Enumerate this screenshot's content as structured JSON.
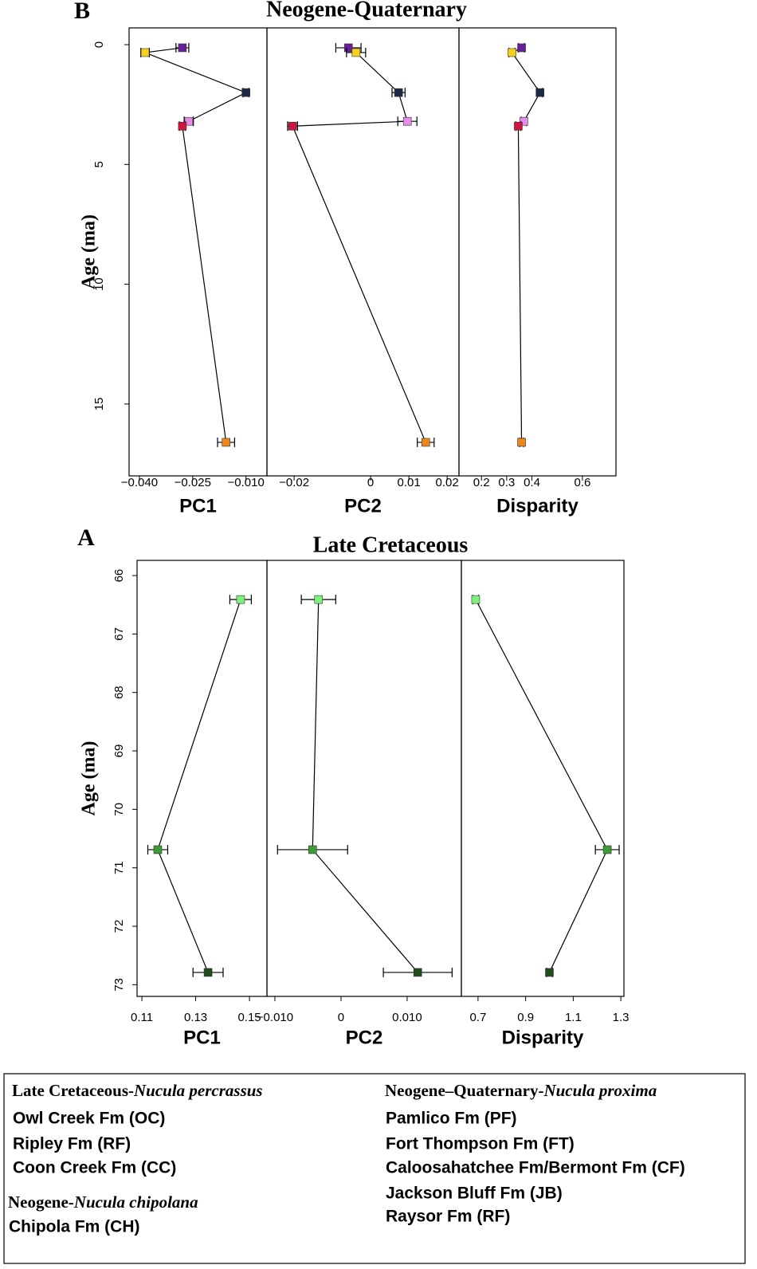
{
  "figures": [
    {
      "label": "B",
      "title": "Neogene-Quaternary"
    },
    {
      "label": "A",
      "title": "Late Cretaceous"
    }
  ],
  "chart_data": [
    {
      "type": "line",
      "ylabel": "Age (ma)",
      "xlabel": "PC1",
      "ylim": [
        18.0,
        -0.7
      ],
      "yticks": [
        0,
        5,
        10,
        15
      ],
      "xlim": [
        -0.0429,
        -0.0041
      ],
      "xticks": [
        {
          "value": -0.04,
          "label": "−0.040"
        },
        {
          "value": -0.025,
          "label": "−0.025"
        },
        {
          "value": -0.01,
          "label": "−0.010"
        }
      ],
      "y": [
        0.13,
        0.33,
        2.0,
        3.2,
        3.4,
        16.6
      ],
      "x": [
        -0.0279,
        -0.0384,
        -0.01,
        -0.0261,
        -0.0279,
        -0.0156
      ],
      "xerr": [
        0.0018,
        0.0012,
        0.0008,
        0.0013,
        0.0008,
        0.0024
      ],
      "colors": [
        "#6a1f9a",
        "#f5d11a",
        "#1b2a4a",
        "#e58de8",
        "#d0163e",
        "#f0851e"
      ]
    },
    {
      "type": "line",
      "xlabel": "PC2",
      "ylim": [
        18.0,
        -0.7
      ],
      "xlim": [
        -0.0271,
        0.0231
      ],
      "xticks": [
        {
          "value": -0.02,
          "label": "−0.02"
        },
        0,
        0.01,
        0.02
      ],
      "y": [
        0.13,
        0.33,
        2.0,
        3.2,
        3.4,
        16.6
      ],
      "x": [
        -0.0058,
        -0.0038,
        0.0073,
        0.0096,
        -0.0204,
        0.0144
      ],
      "xerr": [
        0.0033,
        0.0025,
        0.0017,
        0.0025,
        0.0013,
        0.0022
      ],
      "colors": [
        "#6a1f9a",
        "#f5d11a",
        "#1b2a4a",
        "#e58de8",
        "#d0163e",
        "#f0851e"
      ]
    },
    {
      "type": "line",
      "xlabel": "Disparity",
      "ylim": [
        18.0,
        -0.7
      ],
      "xlim": [
        0.111,
        0.733
      ],
      "xticks": [
        0.2,
        0.3,
        0.4,
        0.6
      ],
      "y": [
        0.13,
        0.33,
        2.0,
        3.2,
        3.4,
        16.6
      ],
      "x": [
        0.359,
        0.321,
        0.432,
        0.368,
        0.346,
        0.359
      ],
      "xerr": [
        0.012,
        0.012,
        0.01,
        0.01,
        0.01,
        0.008
      ],
      "colors": [
        "#6a1f9a",
        "#f5d11a",
        "#1b2a4a",
        "#e58de8",
        "#d0163e",
        "#f0851e"
      ]
    },
    {
      "type": "line",
      "ylabel": "Age (ma)",
      "xlabel": "PC1",
      "ylim": [
        73.2,
        65.74
      ],
      "yticks": [
        66,
        67,
        68,
        69,
        70,
        71,
        72,
        73
      ],
      "xlim": [
        0.1082,
        0.1565
      ],
      "xticks": [
        0.11,
        0.13,
        0.15
      ],
      "y": [
        66.41,
        70.69,
        72.79
      ],
      "x": [
        0.1467,
        0.1159,
        0.1346
      ],
      "xerr": [
        0.004,
        0.0037,
        0.0056
      ],
      "colors": [
        "#7cf27c",
        "#3f9a3a",
        "#1f4d1c"
      ]
    },
    {
      "type": "line",
      "xlabel": "PC2",
      "ylim": [
        73.2,
        65.74
      ],
      "xlim": [
        -0.0112,
        0.0182
      ],
      "xticks": [
        {
          "value": -0.01,
          "label": "−0.010"
        },
        0,
        {
          "value": 0.01,
          "label": "0.010"
        }
      ],
      "y": [
        66.41,
        70.69,
        72.79
      ],
      "x": [
        -0.0034,
        -0.0043,
        0.0116
      ],
      "xerr": [
        0.0026,
        0.0053,
        0.0052
      ],
      "colors": [
        "#7cf27c",
        "#3f9a3a",
        "#1f4d1c"
      ]
    },
    {
      "type": "line",
      "xlabel": "Disparity",
      "ylim": [
        73.2,
        65.74
      ],
      "xlim": [
        0.63,
        1.313
      ],
      "xticks": [
        0.7,
        0.9,
        1.1,
        1.3
      ],
      "y": [
        66.41,
        70.69,
        72.79
      ],
      "x": [
        0.69,
        1.243,
        1.0
      ],
      "xerr": [
        0.012,
        0.05,
        0.012
      ],
      "colors": [
        "#7cf27c",
        "#3f9a3a",
        "#1f4d1c"
      ]
    }
  ],
  "legend": {
    "groups": [
      {
        "title": "Late Cretaceous-",
        "species": "Nucula percrassus",
        "items": [
          {
            "label": "Owl Creek Fm (OC)",
            "color": "#7cf27c"
          },
          {
            "label": "Ripley Fm (RF)",
            "color": "#3f9a3a"
          },
          {
            "label": "Coon Creek Fm (CC)",
            "color": "#1f4d1c"
          }
        ]
      },
      {
        "title": "Neogene-",
        "species": "Nucula chipolana",
        "items": [
          {
            "label": "Chipola Fm (CH)",
            "color": "#f0851e"
          }
        ]
      },
      {
        "title": "Neogene–Quaternary-",
        "species": "Nucula proxima",
        "items": [
          {
            "label": "Pamlico Fm (PF)",
            "color": "#6a1f9a"
          },
          {
            "label": "Fort Thompson Fm (FT)",
            "color": "#f5d11a"
          },
          {
            "label": "Caloosahatchee Fm/Bermont Fm (CF)",
            "color": "#1b2a4a"
          },
          {
            "label": "Jackson Bluff Fm (JB)",
            "color": "#e58de8"
          },
          {
            "label": "Raysor Fm (RF)",
            "color": "#d0163e"
          }
        ]
      }
    ]
  }
}
